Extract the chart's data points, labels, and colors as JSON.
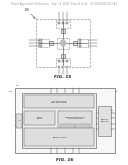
{
  "bg_color": "#ffffff",
  "header_text": "Patent Application Publication    Sep. 18, 2018  Sheet 8 of 44    US 2018/0261471 A1",
  "header_fontsize": 1.8,
  "fig15_label": "FIG. 15",
  "fig16_label": "FIG. 16",
  "page_bg": "#ffffff",
  "line_color": "#555555",
  "box_color": "#666666",
  "dash_color": "#777777",
  "fill_light": "#e8e8e8",
  "fill_white": "#f5f5f5",
  "text_color": "#333333"
}
